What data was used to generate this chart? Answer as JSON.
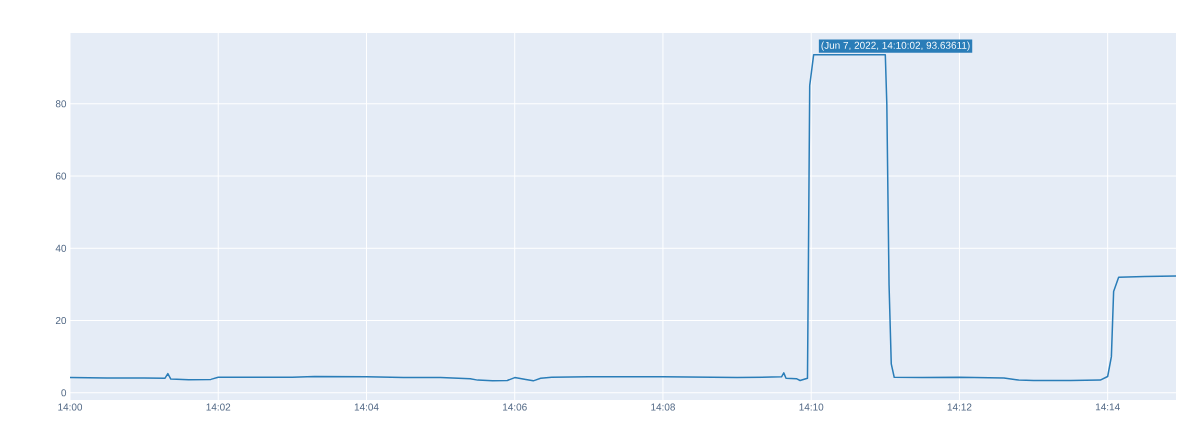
{
  "chart_data": {
    "type": "line",
    "x": [
      14.0,
      14.00833,
      14.01667,
      14.02133,
      14.022,
      14.02267,
      14.02667,
      14.03167,
      14.03333,
      14.05,
      14.055,
      14.06667,
      14.075,
      14.08333,
      14.09,
      14.09167,
      14.095,
      14.09833,
      14.1,
      14.1025,
      14.10417,
      14.10583,
      14.10833,
      14.11667,
      14.13333,
      14.15,
      14.16,
      14.1605,
      14.161,
      14.16333,
      14.16417,
      14.16583,
      14.166,
      14.16633,
      14.16722,
      14.18333,
      14.18367,
      14.18417,
      14.18467,
      14.18533,
      14.19167,
      14.2,
      14.21,
      14.21333,
      14.21667,
      14.225,
      14.23167,
      14.23333,
      14.23417,
      14.23467,
      14.2358,
      14.24167,
      14.2487
    ],
    "series": [
      {
        "color": "#2a7db8",
        "values": [
          4.2,
          4.1,
          4.1,
          4.0,
          5.3,
          3.8,
          3.6,
          3.7,
          4.3,
          4.3,
          4.5,
          4.4,
          4.2,
          4.2,
          3.9,
          3.5,
          3.3,
          3.4,
          4.2,
          3.7,
          3.3,
          4.0,
          4.3,
          4.4,
          4.4,
          4.2,
          4.4,
          5.5,
          4.0,
          3.9,
          3.4,
          4.0,
          30,
          85,
          93.6,
          93.6,
          80,
          30,
          8,
          4.3,
          4.2,
          4.3,
          4.1,
          3.5,
          3.4,
          3.4,
          3.5,
          4.5,
          10,
          28,
          32,
          32.2,
          32.3
        ]
      }
    ],
    "xlim": [
      14.0,
      14.2487
    ],
    "ylim": [
      -2,
      99.6
    ],
    "xticks": [
      {
        "value": 14.0,
        "label": "14:00"
      },
      {
        "value": 14.03333,
        "label": "14:02"
      },
      {
        "value": 14.06667,
        "label": "14:04"
      },
      {
        "value": 14.1,
        "label": "14:06"
      },
      {
        "value": 14.13333,
        "label": "14:08"
      },
      {
        "value": 14.16667,
        "label": "14:10"
      },
      {
        "value": 14.2,
        "label": "14:12"
      },
      {
        "value": 14.23333,
        "label": "14:14"
      }
    ],
    "yticks": [
      0,
      20,
      40,
      60,
      80
    ],
    "grid": true,
    "annotations": [
      {
        "text": "(Jun 7, 2022, 14:10:02, 93.63611)",
        "x": 14.16722,
        "y": 93.63611
      }
    ]
  }
}
